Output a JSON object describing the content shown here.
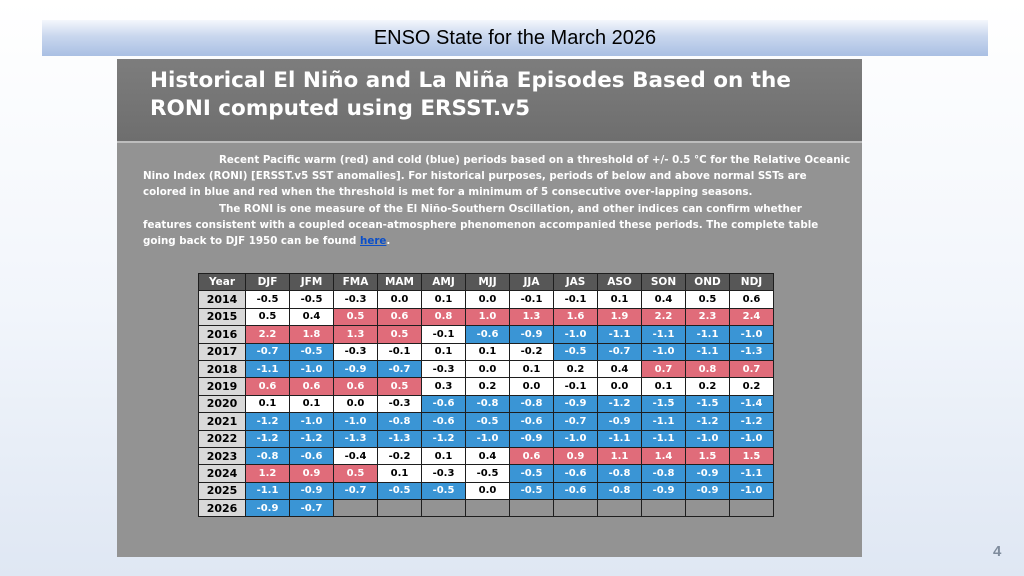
{
  "slide_title": "ENSO State for the March 2026",
  "heading": {
    "line1": "Historical El Niño and La Niña Episodes Based on the",
    "line2": "RONI computed using ERSST.v5"
  },
  "intro": {
    "para1": "Recent Pacific warm (red) and cold (blue) periods based on a threshold of +/- 0.5 °C for the Relative Oceanic Nino Index (RONI) [ERSST.v5 SST anomalies]. For historical purposes, periods of below and above normal SSTs are colored in blue and red when the threshold is met for a minimum of 5 consecutive over-lapping seasons.",
    "para2_text": "The RONI is one measure of the El Niño-Southern Oscillation, and other indices can confirm whether features consistent with a coupled ocean-atmosphere phenomenon accompanied these periods. The complete table going back to DJF 1950 can be found ",
    "link_label": "here",
    "para2_end": "."
  },
  "table": {
    "headers": [
      "Year",
      "DJF",
      "JFM",
      "FMA",
      "MAM",
      "AMJ",
      "MJJ",
      "JJA",
      "JAS",
      "ASO",
      "SON",
      "OND",
      "NDJ"
    ],
    "rows": [
      {
        "year": "2014",
        "cells": [
          [
            "-0.5",
            "n"
          ],
          [
            "-0.5",
            "n"
          ],
          [
            "-0.3",
            "n"
          ],
          [
            "0.0",
            "n"
          ],
          [
            "0.1",
            "n"
          ],
          [
            "0.0",
            "n"
          ],
          [
            "-0.1",
            "n"
          ],
          [
            "-0.1",
            "n"
          ],
          [
            "0.1",
            "n"
          ],
          [
            "0.4",
            "n"
          ],
          [
            "0.5",
            "n"
          ],
          [
            "0.6",
            "n"
          ]
        ]
      },
      {
        "year": "2015",
        "cells": [
          [
            "0.5",
            "n"
          ],
          [
            "0.4",
            "n"
          ],
          [
            "0.5",
            "w"
          ],
          [
            "0.6",
            "w"
          ],
          [
            "0.8",
            "w"
          ],
          [
            "1.0",
            "w"
          ],
          [
            "1.3",
            "w"
          ],
          [
            "1.6",
            "w"
          ],
          [
            "1.9",
            "w"
          ],
          [
            "2.2",
            "w"
          ],
          [
            "2.3",
            "w"
          ],
          [
            "2.4",
            "w"
          ]
        ]
      },
      {
        "year": "2016",
        "cells": [
          [
            "2.2",
            "w"
          ],
          [
            "1.8",
            "w"
          ],
          [
            "1.3",
            "w"
          ],
          [
            "0.5",
            "w"
          ],
          [
            "-0.1",
            "n"
          ],
          [
            "-0.6",
            "c"
          ],
          [
            "-0.9",
            "c"
          ],
          [
            "-1.0",
            "c"
          ],
          [
            "-1.1",
            "c"
          ],
          [
            "-1.1",
            "c"
          ],
          [
            "-1.1",
            "c"
          ],
          [
            "-1.0",
            "c"
          ]
        ]
      },
      {
        "year": "2017",
        "cells": [
          [
            "-0.7",
            "c"
          ],
          [
            "-0.5",
            "c"
          ],
          [
            "-0.3",
            "n"
          ],
          [
            "-0.1",
            "n"
          ],
          [
            "0.1",
            "n"
          ],
          [
            "0.1",
            "n"
          ],
          [
            "-0.2",
            "n"
          ],
          [
            "-0.5",
            "c"
          ],
          [
            "-0.7",
            "c"
          ],
          [
            "-1.0",
            "c"
          ],
          [
            "-1.1",
            "c"
          ],
          [
            "-1.3",
            "c"
          ]
        ]
      },
      {
        "year": "2018",
        "cells": [
          [
            "-1.1",
            "c"
          ],
          [
            "-1.0",
            "c"
          ],
          [
            "-0.9",
            "c"
          ],
          [
            "-0.7",
            "c"
          ],
          [
            "-0.3",
            "n"
          ],
          [
            "0.0",
            "n"
          ],
          [
            "0.1",
            "n"
          ],
          [
            "0.2",
            "n"
          ],
          [
            "0.4",
            "n"
          ],
          [
            "0.7",
            "w"
          ],
          [
            "0.8",
            "w"
          ],
          [
            "0.7",
            "w"
          ]
        ]
      },
      {
        "year": "2019",
        "cells": [
          [
            "0.6",
            "w"
          ],
          [
            "0.6",
            "w"
          ],
          [
            "0.6",
            "w"
          ],
          [
            "0.5",
            "w"
          ],
          [
            "0.3",
            "n"
          ],
          [
            "0.2",
            "n"
          ],
          [
            "0.0",
            "n"
          ],
          [
            "-0.1",
            "n"
          ],
          [
            "0.0",
            "n"
          ],
          [
            "0.1",
            "n"
          ],
          [
            "0.2",
            "n"
          ],
          [
            "0.2",
            "n"
          ]
        ]
      },
      {
        "year": "2020",
        "cells": [
          [
            "0.1",
            "n"
          ],
          [
            "0.1",
            "n"
          ],
          [
            "0.0",
            "n"
          ],
          [
            "-0.3",
            "n"
          ],
          [
            "-0.6",
            "c"
          ],
          [
            "-0.8",
            "c"
          ],
          [
            "-0.8",
            "c"
          ],
          [
            "-0.9",
            "c"
          ],
          [
            "-1.2",
            "c"
          ],
          [
            "-1.5",
            "c"
          ],
          [
            "-1.5",
            "c"
          ],
          [
            "-1.4",
            "c"
          ]
        ]
      },
      {
        "year": "2021",
        "cells": [
          [
            "-1.2",
            "c"
          ],
          [
            "-1.0",
            "c"
          ],
          [
            "-1.0",
            "c"
          ],
          [
            "-0.8",
            "c"
          ],
          [
            "-0.6",
            "c"
          ],
          [
            "-0.5",
            "c"
          ],
          [
            "-0.6",
            "c"
          ],
          [
            "-0.7",
            "c"
          ],
          [
            "-0.9",
            "c"
          ],
          [
            "-1.1",
            "c"
          ],
          [
            "-1.2",
            "c"
          ],
          [
            "-1.2",
            "c"
          ]
        ]
      },
      {
        "year": "2022",
        "cells": [
          [
            "-1.2",
            "c"
          ],
          [
            "-1.2",
            "c"
          ],
          [
            "-1.3",
            "c"
          ],
          [
            "-1.3",
            "c"
          ],
          [
            "-1.2",
            "c"
          ],
          [
            "-1.0",
            "c"
          ],
          [
            "-0.9",
            "c"
          ],
          [
            "-1.0",
            "c"
          ],
          [
            "-1.1",
            "c"
          ],
          [
            "-1.1",
            "c"
          ],
          [
            "-1.0",
            "c"
          ],
          [
            "-1.0",
            "c"
          ]
        ]
      },
      {
        "year": "2023",
        "cells": [
          [
            "-0.8",
            "c"
          ],
          [
            "-0.6",
            "c"
          ],
          [
            "-0.4",
            "n"
          ],
          [
            "-0.2",
            "n"
          ],
          [
            "0.1",
            "n"
          ],
          [
            "0.4",
            "n"
          ],
          [
            "0.6",
            "w"
          ],
          [
            "0.9",
            "w"
          ],
          [
            "1.1",
            "w"
          ],
          [
            "1.4",
            "w"
          ],
          [
            "1.5",
            "w"
          ],
          [
            "1.5",
            "w"
          ]
        ]
      },
      {
        "year": "2024",
        "cells": [
          [
            "1.2",
            "w"
          ],
          [
            "0.9",
            "w"
          ],
          [
            "0.5",
            "w"
          ],
          [
            "0.1",
            "n"
          ],
          [
            "-0.3",
            "n"
          ],
          [
            "-0.5",
            "n"
          ],
          [
            "-0.5",
            "c"
          ],
          [
            "-0.6",
            "c"
          ],
          [
            "-0.8",
            "c"
          ],
          [
            "-0.8",
            "c"
          ],
          [
            "-0.9",
            "c"
          ],
          [
            "-1.1",
            "c"
          ]
        ]
      },
      {
        "year": "2025",
        "cells": [
          [
            "-1.1",
            "c"
          ],
          [
            "-0.9",
            "c"
          ],
          [
            "-0.7",
            "c"
          ],
          [
            "-0.5",
            "c"
          ],
          [
            "-0.5",
            "c"
          ],
          [
            "0.0",
            "n"
          ],
          [
            "-0.5",
            "c"
          ],
          [
            "-0.6",
            "c"
          ],
          [
            "-0.8",
            "c"
          ],
          [
            "-0.9",
            "c"
          ],
          [
            "-0.9",
            "c"
          ],
          [
            "-1.0",
            "c"
          ]
        ]
      },
      {
        "year": "2026",
        "cells": [
          [
            "-0.9",
            "c"
          ],
          [
            "-0.7",
            "c"
          ],
          [
            "",
            "b"
          ],
          [
            "",
            "b"
          ],
          [
            "",
            "b"
          ],
          [
            "",
            "b"
          ],
          [
            "",
            "b"
          ],
          [
            "",
            "b"
          ],
          [
            "",
            "b"
          ],
          [
            "",
            "b"
          ],
          [
            "",
            "b"
          ],
          [
            "",
            "b"
          ]
        ]
      }
    ]
  },
  "colors": {
    "warm": "#e06c7a",
    "cold": "#3a95d5",
    "neutral": "#ffffff"
  },
  "page_number": "4"
}
